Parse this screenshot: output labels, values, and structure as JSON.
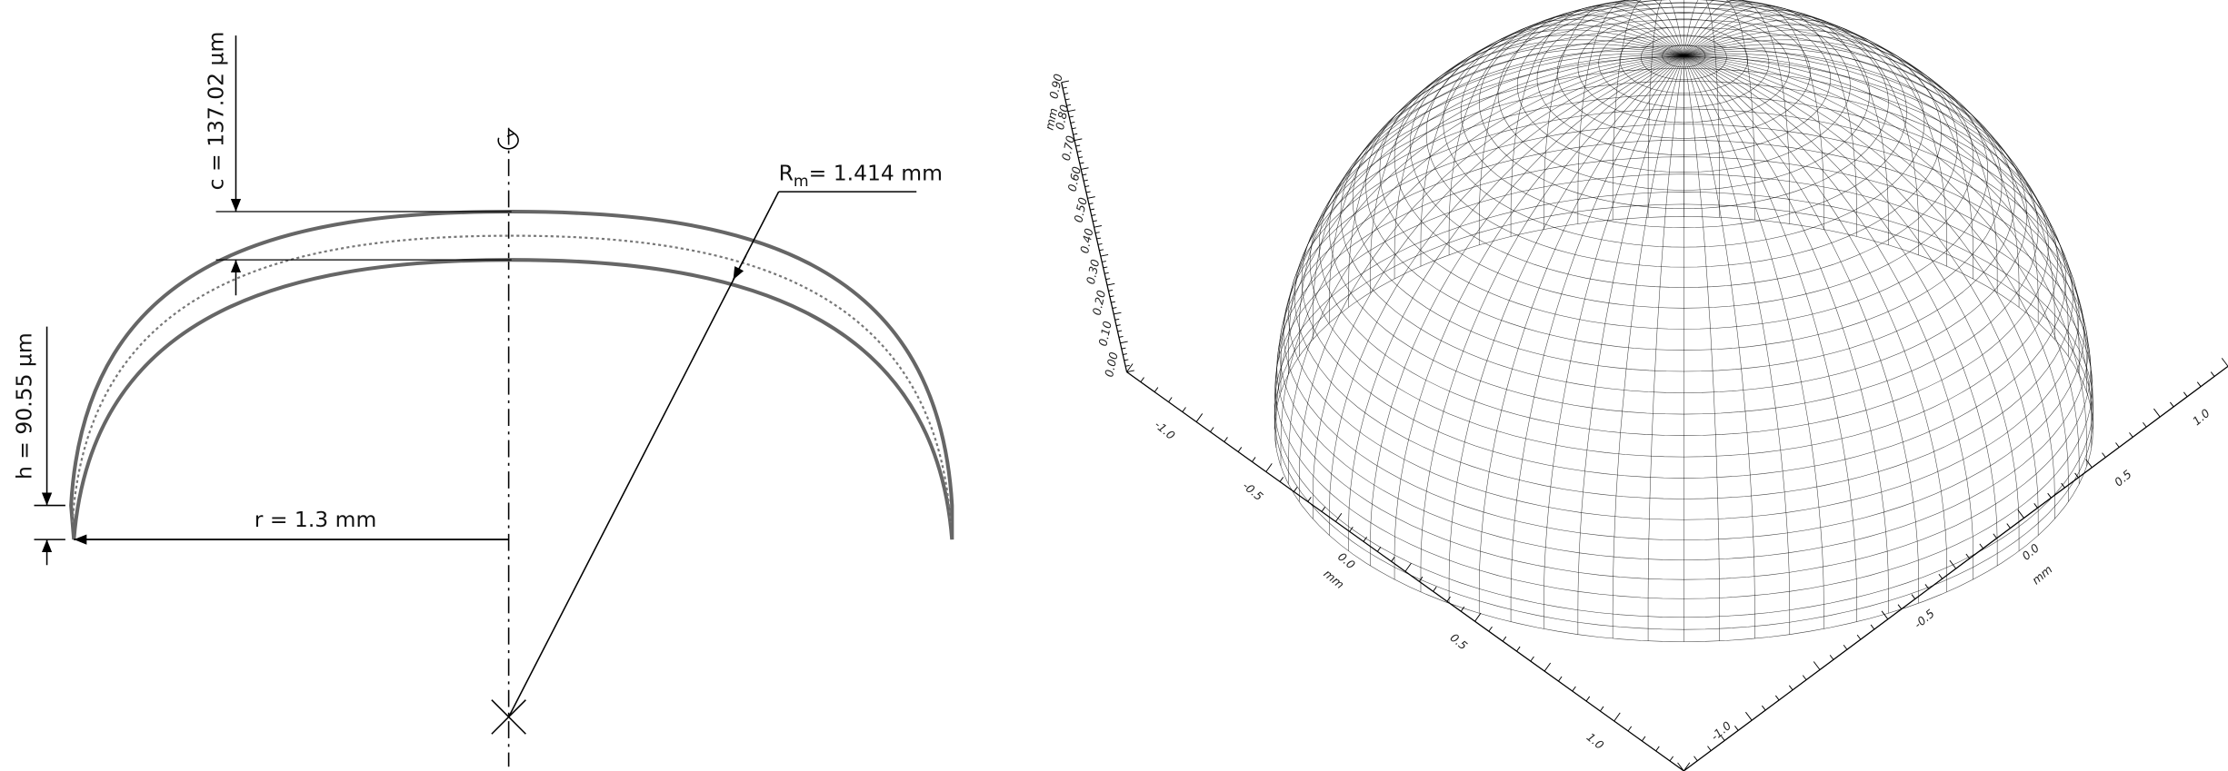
{
  "left": {
    "c_label": "c = 137.02 µm",
    "h_label": "h = 90.55 µm",
    "r_label": "r = 1.3 mm",
    "rm_label": {
      "symbol": "R",
      "subscript": "m",
      "text": "= 1.414 mm"
    }
  },
  "right": {
    "z_axis": {
      "unit": "mm",
      "ticks": [
        "0.00",
        "0.10",
        "0.20",
        "0.30",
        "0.40",
        "0.50",
        "0.60",
        "0.70",
        "0.80",
        "0.90"
      ]
    },
    "x_axis": {
      "unit": "mm",
      "ticks": [
        "-1.0",
        "-0.5",
        "0.0",
        "0.5",
        "1.0"
      ]
    },
    "y_axis": {
      "unit": "mm",
      "ticks": [
        "-1.0",
        "-0.5",
        "0.0",
        "0.5",
        "1.0"
      ]
    }
  }
}
